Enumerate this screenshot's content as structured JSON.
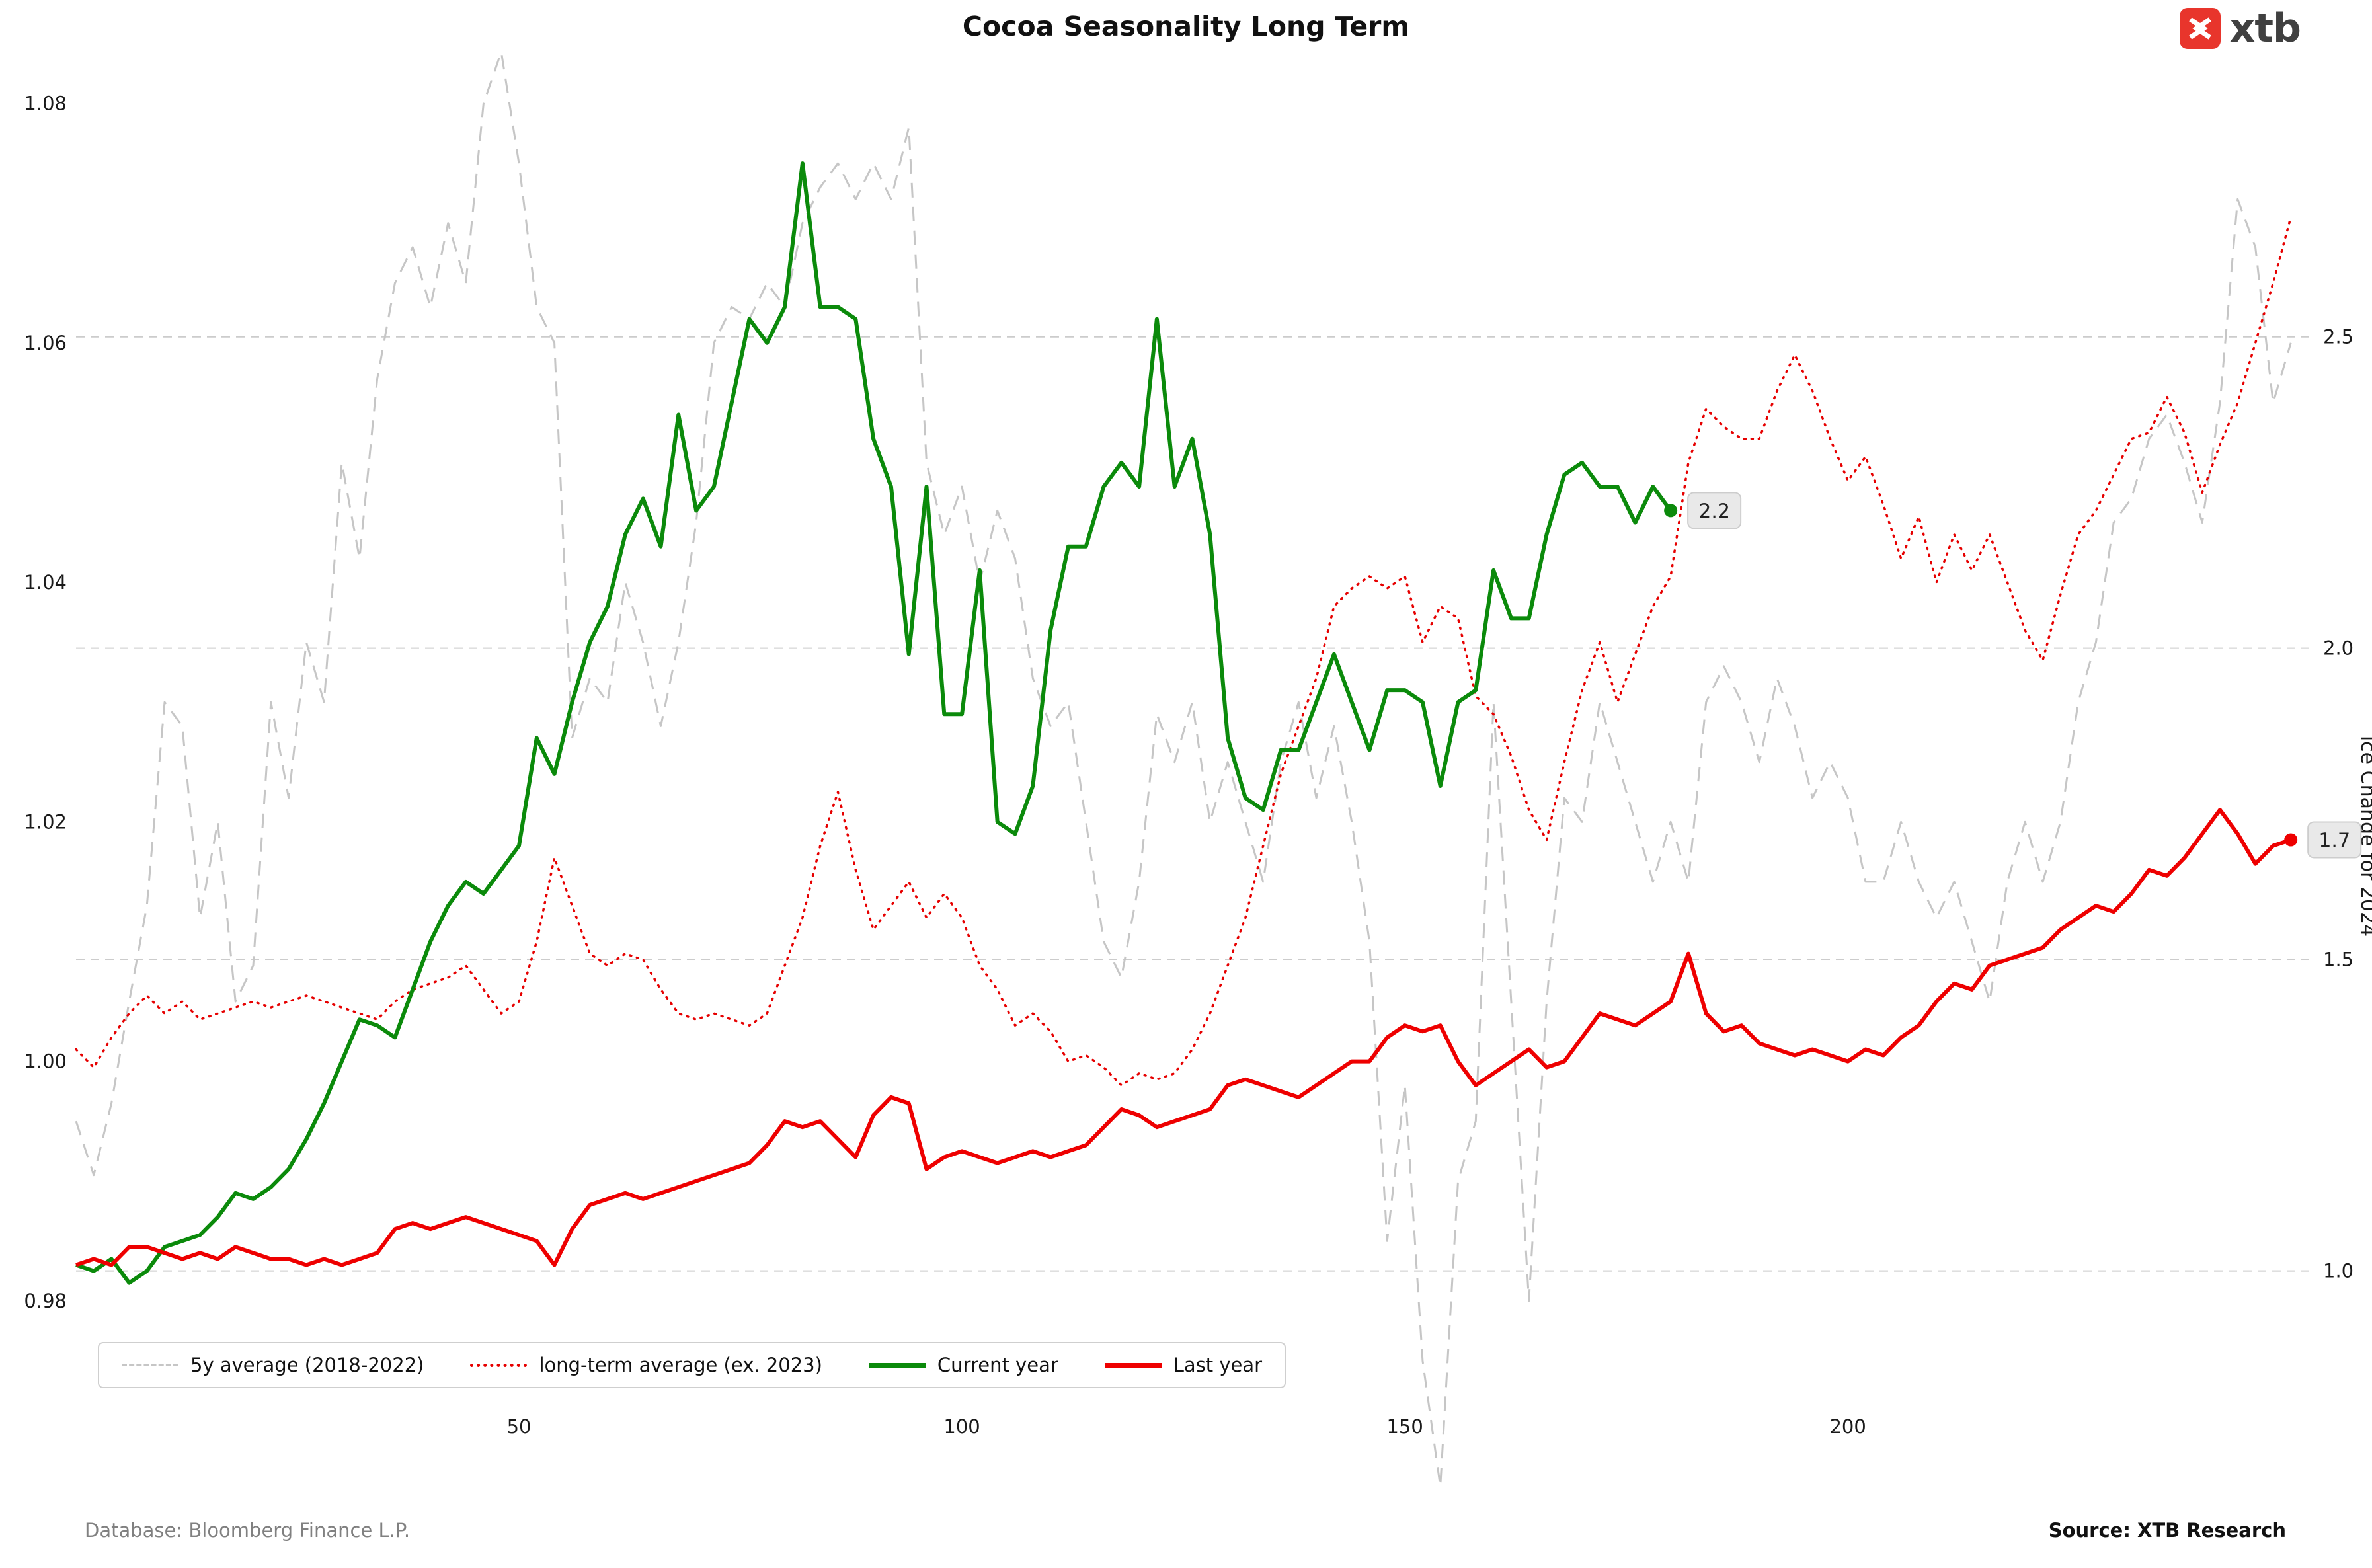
{
  "page": {
    "title": "Cocoa Seasonality Long Term",
    "logo_text": "xtb",
    "footer_left": "Database: Bloomberg Finance L.P.",
    "footer_right": "Source: XTB Research"
  },
  "chart_data": {
    "type": "line",
    "title": "Cocoa Seasonality Long Term",
    "x_axis": {
      "ticks": [
        50,
        100,
        150,
        200
      ],
      "range": [
        0,
        252
      ]
    },
    "y_axis_left": {
      "ticks": [
        0.98,
        1.0,
        1.02,
        1.04,
        1.06,
        1.08
      ],
      "range": [
        0.9716,
        1.0845
      ]
    },
    "y_axis_right": {
      "label": "ice Change for 2024",
      "ticks": [
        1.0,
        1.5,
        2.0,
        2.5
      ],
      "left_axis_mapping": {
        "at": 1.0,
        "base": 0.9825,
        "per_unit": 0.052
      }
    },
    "grid": {
      "style": "horizontal-dashed-at-right-ticks",
      "color": "#cccccc"
    },
    "legend_position": "bottom-left",
    "annotations": [
      {
        "text": "2.2",
        "series_index": 2,
        "box_fill": "#e9e9e9"
      },
      {
        "text": "1.7",
        "series_index": 3,
        "box_fill": "#e9e9e9"
      }
    ],
    "series": [
      {
        "name": "5y average (2018-2022)",
        "slug": "5y-average",
        "color": "#c6c6c6",
        "style": "dashed",
        "width": 3,
        "x_start": 0,
        "x_step": 2,
        "values": [
          0.995,
          0.9905,
          0.9965,
          1.005,
          1.013,
          1.03,
          1.028,
          1.012,
          1.02,
          1.005,
          1.008,
          1.03,
          1.022,
          1.035,
          1.03,
          1.05,
          1.042,
          1.057,
          1.065,
          1.068,
          1.063,
          1.07,
          1.065,
          1.08,
          1.0843,
          1.075,
          1.063,
          1.06,
          1.027,
          1.032,
          1.03,
          1.04,
          1.035,
          1.028,
          1.035,
          1.045,
          1.06,
          1.063,
          1.062,
          1.065,
          1.063,
          1.07,
          1.073,
          1.075,
          1.072,
          1.075,
          1.072,
          1.078,
          1.05,
          1.044,
          1.048,
          1.04,
          1.046,
          1.042,
          1.032,
          1.028,
          1.03,
          1.02,
          1.01,
          1.007,
          1.015,
          1.029,
          1.025,
          1.03,
          1.02,
          1.025,
          1.02,
          1.015,
          1.025,
          1.03,
          1.022,
          1.028,
          1.02,
          1.01,
          0.985,
          0.998,
          0.975,
          0.9645,
          0.99,
          0.995,
          1.03,
          1.005,
          0.98,
          1.005,
          1.022,
          1.02,
          1.03,
          1.025,
          1.02,
          1.015,
          1.02,
          1.015,
          1.03,
          1.033,
          1.03,
          1.025,
          1.032,
          1.028,
          1.022,
          1.025,
          1.022,
          1.015,
          1.015,
          1.02,
          1.015,
          1.012,
          1.015,
          1.01,
          1.005,
          1.015,
          1.02,
          1.015,
          1.02,
          1.03,
          1.035,
          1.045,
          1.047,
          1.052,
          1.054,
          1.05,
          1.045,
          1.055,
          1.072,
          1.068,
          1.055,
          1.06
        ]
      },
      {
        "name": "long-term average (ex. 2023)",
        "slug": "long-term-average",
        "color": "#e60000",
        "style": "dotted",
        "width": 3.5,
        "x_start": 0,
        "x_step": 2,
        "values": [
          1.001,
          0.9995,
          1.002,
          1.004,
          1.0055,
          1.004,
          1.005,
          1.0035,
          1.004,
          1.0045,
          1.005,
          1.0045,
          1.005,
          1.0055,
          1.005,
          1.0045,
          1.004,
          1.0035,
          1.005,
          1.006,
          1.0065,
          1.007,
          1.008,
          1.006,
          1.004,
          1.005,
          1.01,
          1.017,
          1.013,
          1.009,
          1.008,
          1.009,
          1.0085,
          1.006,
          1.004,
          1.0035,
          1.004,
          1.0035,
          1.003,
          1.004,
          1.008,
          1.012,
          1.018,
          1.0225,
          1.016,
          1.011,
          1.013,
          1.015,
          1.012,
          1.014,
          1.012,
          1.008,
          1.006,
          1.003,
          1.004,
          1.0025,
          1.0,
          1.0005,
          0.9995,
          0.998,
          0.999,
          0.9985,
          0.999,
          1.001,
          1.004,
          1.008,
          1.012,
          1.018,
          1.024,
          1.028,
          1.032,
          1.038,
          1.0395,
          1.0405,
          1.0395,
          1.0405,
          1.035,
          1.038,
          1.037,
          1.0305,
          1.029,
          1.0255,
          1.021,
          1.0185,
          1.025,
          1.031,
          1.035,
          1.03,
          1.034,
          1.038,
          1.0405,
          1.05,
          1.0545,
          1.053,
          1.052,
          1.052,
          1.056,
          1.059,
          1.056,
          1.052,
          1.0485,
          1.0505,
          1.0465,
          1.042,
          1.0455,
          1.04,
          1.044,
          1.041,
          1.044,
          1.04,
          1.036,
          1.0335,
          1.039,
          1.044,
          1.046,
          1.049,
          1.052,
          1.0525,
          1.0555,
          1.0525,
          1.0475,
          1.0515,
          1.055,
          1.06,
          1.065,
          1.0705
        ]
      },
      {
        "name": "Current year",
        "slug": "current-year",
        "color": "#0b8a0b",
        "style": "solid",
        "width": 6,
        "x_start": 0,
        "x_step": 2,
        "values": [
          0.983,
          0.9825,
          0.9835,
          0.9815,
          0.9825,
          0.9845,
          0.985,
          0.9855,
          0.987,
          0.989,
          0.9885,
          0.9895,
          0.991,
          0.9935,
          0.9965,
          1.0,
          1.0035,
          1.003,
          1.002,
          1.006,
          1.01,
          1.013,
          1.015,
          1.014,
          1.016,
          1.018,
          1.027,
          1.024,
          1.03,
          1.035,
          1.038,
          1.044,
          1.047,
          1.043,
          1.054,
          1.046,
          1.048,
          1.055,
          1.062,
          1.06,
          1.063,
          1.075,
          1.063,
          1.063,
          1.062,
          1.052,
          1.048,
          1.034,
          1.048,
          1.029,
          1.029,
          1.041,
          1.02,
          1.019,
          1.023,
          1.036,
          1.043,
          1.043,
          1.048,
          1.05,
          1.048,
          1.062,
          1.048,
          1.052,
          1.044,
          1.027,
          1.022,
          1.021,
          1.026,
          1.026,
          1.03,
          1.034,
          1.03,
          1.026,
          1.031,
          1.031,
          1.03,
          1.023,
          1.03,
          1.031,
          1.041,
          1.037,
          1.037,
          1.044,
          1.049,
          1.05,
          1.048,
          1.048,
          1.045,
          1.048,
          1.046
        ]
      },
      {
        "name": "Last year",
        "slug": "last-year",
        "color": "#ee0000",
        "style": "solid",
        "width": 6,
        "x_start": 0,
        "x_step": 2,
        "values": [
          0.983,
          0.9835,
          0.983,
          0.9845,
          0.9845,
          0.984,
          0.9835,
          0.984,
          0.9835,
          0.9845,
          0.984,
          0.9835,
          0.9835,
          0.983,
          0.9835,
          0.983,
          0.9835,
          0.984,
          0.986,
          0.9865,
          0.986,
          0.9865,
          0.987,
          0.9865,
          0.986,
          0.9855,
          0.985,
          0.983,
          0.986,
          0.988,
          0.9885,
          0.989,
          0.9885,
          0.989,
          0.9895,
          0.99,
          0.9905,
          0.991,
          0.9915,
          0.993,
          0.995,
          0.9945,
          0.995,
          0.9935,
          0.992,
          0.9955,
          0.997,
          0.9965,
          0.991,
          0.992,
          0.9925,
          0.992,
          0.9915,
          0.992,
          0.9925,
          0.992,
          0.9925,
          0.993,
          0.9945,
          0.996,
          0.9955,
          0.9945,
          0.995,
          0.9955,
          0.996,
          0.998,
          0.9985,
          0.998,
          0.9975,
          0.997,
          0.998,
          0.999,
          1.0,
          1.0,
          1.002,
          1.003,
          1.0025,
          1.003,
          1.0,
          0.998,
          0.999,
          1.0,
          1.001,
          0.9995,
          1.0,
          1.002,
          1.004,
          1.0035,
          1.003,
          1.004,
          1.005,
          1.009,
          1.004,
          1.0025,
          1.003,
          1.0015,
          1.001,
          1.0005,
          1.001,
          1.0005,
          1.0,
          1.001,
          1.0005,
          1.002,
          1.003,
          1.005,
          1.0065,
          1.006,
          1.008,
          1.0085,
          1.009,
          1.0095,
          1.011,
          1.012,
          1.013,
          1.0125,
          1.014,
          1.016,
          1.0155,
          1.017,
          1.019,
          1.021,
          1.019,
          1.0165,
          1.018,
          1.0185
        ]
      }
    ]
  }
}
